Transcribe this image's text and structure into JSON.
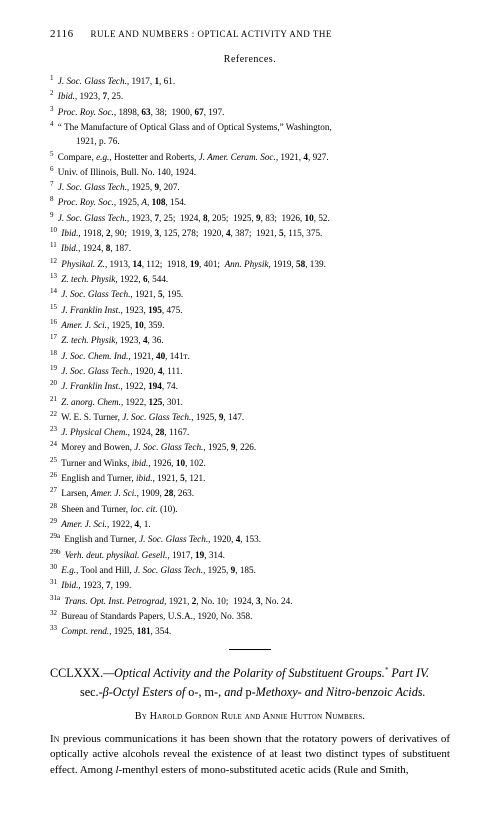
{
  "page_number": "2116",
  "running_head": "RULE AND NUMBERS : OPTICAL ACTIVITY AND THE",
  "references_heading": "References.",
  "references": [
    {
      "n": "1",
      "html": "<span class='ital'>J. Soc. Glass Tech.</span>, 1917, <b>1</b>, 61."
    },
    {
      "n": "2",
      "html": "<span class='ital'>Ibid.</span>, 1923, <b>7</b>, 25."
    },
    {
      "n": "3",
      "html": "<span class='ital'>Proc. Roy. Soc.</span>, 1898, <b>63</b>, 38;&nbsp; 1900, <b>67</b>, 197."
    },
    {
      "n": "4",
      "html": "&ldquo; The Manufacture of Optical Glass and of Optical Systems,&rdquo; Washington,",
      "cont": "1921, p. 76."
    },
    {
      "n": "5",
      "html": "Compare, <span class='ital'>e.g.</span>, Hostetter and Roberts, <span class='ital'>J. Amer. Ceram. Soc.</span>, 1921, <b>4</b>, 927."
    },
    {
      "n": "6",
      "html": "Univ. of Illinois, Bull. No. 140, 1924."
    },
    {
      "n": "7",
      "html": "<span class='ital'>J. Soc. Glass Tech.</span>, 1925, <b>9</b>, 207."
    },
    {
      "n": "8",
      "html": "<span class='ital'>Proc. Roy. Soc.</span>, 1925, <span class='ital'>A</span>, <b>108</b>, 154."
    },
    {
      "n": "9",
      "html": "<span class='ital'>J. Soc. Glass Tech.</span>, 1923, <b>7</b>, 25;&nbsp; 1924, <b>8</b>, 205;&nbsp; 1925, <b>9</b>, 83;&nbsp; 1926, <b>10</b>, 52."
    },
    {
      "n": "10",
      "html": "<span class='ital'>Ibid.</span>, 1918, <b>2</b>, 90;&nbsp; 1919, <b>3</b>, 125, 278;&nbsp; 1920, <b>4</b>, 387;&nbsp; 1921, <b>5</b>, 115, 375."
    },
    {
      "n": "11",
      "html": "<span class='ital'>Ibid.</span>, 1924, <b>8</b>, 187."
    },
    {
      "n": "12",
      "html": "<span class='ital'>Physikal. Z.</span>, 1913, <b>14</b>, 112;&nbsp; 1918, <b>19</b>, 401;&nbsp; <span class='ital'>Ann. Physik</span>, 1919, <b>58</b>, 139."
    },
    {
      "n": "13",
      "html": "<span class='ital'>Z. tech. Physik</span>, 1922, <b>6</b>, 544."
    },
    {
      "n": "14",
      "html": "<span class='ital'>J. Soc. Glass Tech.</span>, 1921, <b>5</b>, 195."
    },
    {
      "n": "15",
      "html": "<span class='ital'>J. Franklin Inst.</span>, 1923, <b>195</b>, 475."
    },
    {
      "n": "16",
      "html": "<span class='ital'>Amer. J. Sci.</span>, 1925, <b>10</b>, 359."
    },
    {
      "n": "17",
      "html": "<span class='ital'>Z. tech. Physik</span>, 1923, <b>4</b>, 36."
    },
    {
      "n": "18",
      "html": "<span class='ital'>J. Soc. Chem. Ind.</span>, 1921, <b>40</b>, 141&#x1d1b;."
    },
    {
      "n": "19",
      "html": "<span class='ital'>J. Soc. Glass Tech.</span>, 1920, <b>4</b>, 111."
    },
    {
      "n": "20",
      "html": "<span class='ital'>J. Franklin Inst.</span>, 1922, <b>194</b>, 74."
    },
    {
      "n": "21",
      "html": "<span class='ital'>Z. anorg. Chem.</span>, 1922, <b>125</b>, 301."
    },
    {
      "n": "22",
      "html": "W. E. S. Turner, <span class='ital'>J. Soc. Glass Tech.</span>, 1925, <b>9</b>, 147."
    },
    {
      "n": "23",
      "html": "<span class='ital'>J. Physical Chem.</span>, 1924, <b>28</b>, 1167."
    },
    {
      "n": "24",
      "html": "Morey and Bowen, <span class='ital'>J. Soc. Glass Tech.</span>, 1925, <b>9</b>, 226."
    },
    {
      "n": "25",
      "html": "Turner and Winks, <span class='ital'>ibid.</span>, 1926, <b>10</b>, 102."
    },
    {
      "n": "26",
      "html": "English and Turner, <span class='ital'>ibid.</span>, 1921, <b>5</b>, 121."
    },
    {
      "n": "27",
      "html": "Larsen, <span class='ital'>Amer. J. Sci.</span>, 1909, <b>28</b>, 263."
    },
    {
      "n": "28",
      "html": "Sheen and Turner, <span class='ital'>loc. cit.</span> (10)."
    },
    {
      "n": "29",
      "html": "<span class='ital'>Amer. J. Sci.</span>, 1922, <b>4</b>, 1."
    },
    {
      "n": "29a",
      "html": "English and Turner, <span class='ital'>J. Soc. Glass Tech.</span>, 1920, <b>4</b>, 153."
    },
    {
      "n": "29b",
      "html": "<span class='ital'>Verh. deut. physikal. Gesell.</span>, 1917, <b>19</b>, 314."
    },
    {
      "n": "30",
      "html": "<span class='ital'>E.g.</span>, Tool and Hill, <span class='ital'>J. Soc. Glass Tech.</span>, 1925, <b>9</b>, 185."
    },
    {
      "n": "31",
      "html": "<span class='ital'>Ibid.</span>, 1923, <b>7</b>, 199."
    },
    {
      "n": "31a",
      "html": "<span class='ital'>Trans. Opt. Inst. Petrograd</span>, 1921, <b>2</b>, No. 10;&nbsp; 1924, <b>3</b>, No. 24."
    },
    {
      "n": "32",
      "html": "Bureau of Standards Papers, U.S.A., 1920, No. 358."
    },
    {
      "n": "33",
      "html": "<span class='ital'>Compt. rend.</span>, 1925, <b>181</b>, 354."
    }
  ],
  "article": {
    "number": "CCLXXX.",
    "title_html": "&mdash;Optical Activity and the Polarity of Substituent Groups.<sup class='note'>*</sup> Part IV. <span class='roman'>sec.-</span>&beta;-Octyl Esters of <span class='roman'>o-, m-,</span> and <span class='roman'>p-</span>Methoxy- and Nitro-benzoic Acids.",
    "authors": "By Harold Gordon Rule and Annie Hutton Numbers.",
    "body_html": "<span class='sc'>In</span> previous communications it has been shown that the rotatory powers of derivatives of optically active alcohols reveal the existence of at least two distinct types of substituent effect. Among <span class='ital'>l</span>-menthyl esters of mono-substituted acetic acids (Rule and Smith,"
  }
}
